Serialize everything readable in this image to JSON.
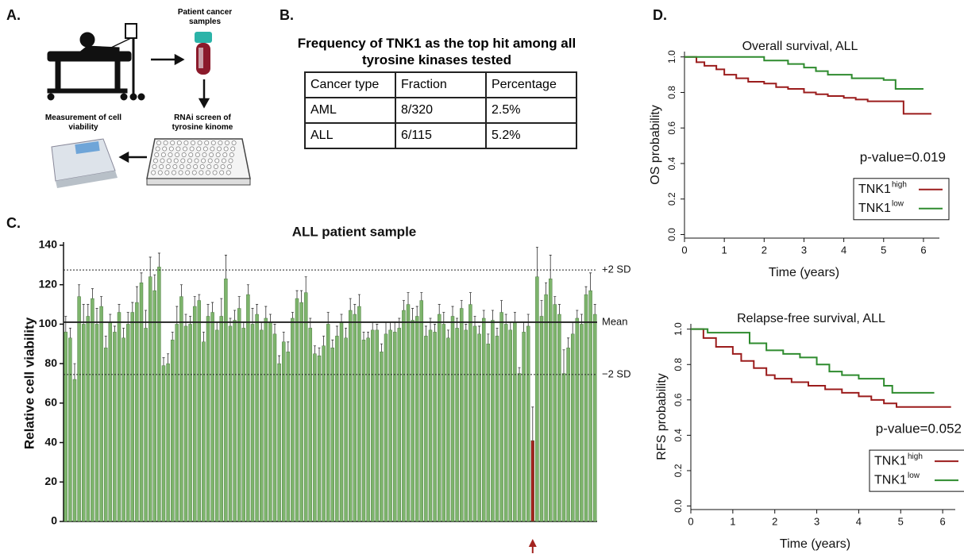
{
  "panel_labels": [
    "A.",
    "B.",
    "C.",
    "D."
  ],
  "diagram": {
    "patient_samples": "Patient cancer samples",
    "screen": "RNAi screen of tyrosine kinome",
    "measurement": "Measurement of cell viability"
  },
  "table": {
    "title": "Frequency of TNK1 as the top hit among all tyrosine kinases tested",
    "header": [
      "Cancer type",
      "Fraction",
      "Percentage"
    ],
    "rows": [
      [
        "AML",
        "8/320",
        "2.5%"
      ],
      [
        "ALL",
        "6/115",
        "5.2%"
      ]
    ]
  },
  "chart_data": [
    {
      "type": "bar",
      "title": "ALL patient sample",
      "y_label": "Relative cell viability",
      "values": [
        96,
        93,
        72,
        114,
        100,
        104,
        113,
        100,
        109,
        88,
        101,
        96,
        106,
        93,
        100,
        106,
        111,
        121,
        98,
        124,
        117,
        129,
        79,
        80,
        92,
        100,
        114,
        99,
        100,
        109,
        112,
        91,
        104,
        106,
        97,
        104,
        123,
        99,
        102,
        108,
        98,
        115,
        100,
        105,
        97,
        103,
        101,
        95,
        80,
        91,
        86,
        103,
        113,
        111,
        116,
        98,
        85,
        84,
        89,
        100,
        88,
        94,
        101,
        93,
        107,
        105,
        109,
        92,
        93,
        97,
        97,
        86,
        95,
        97,
        96,
        98,
        107,
        110,
        102,
        104,
        112,
        94,
        97,
        96,
        105,
        100,
        93,
        104,
        98,
        108,
        97,
        110,
        99,
        95,
        103,
        90,
        102,
        94,
        106,
        100,
        97,
        101,
        75,
        96,
        99,
        41,
        124,
        104,
        115,
        123,
        110,
        105,
        75,
        88,
        95,
        103,
        100,
        115,
        117,
        105
      ],
      "errors": [
        8,
        5,
        8,
        6,
        10,
        6,
        5,
        8,
        5,
        6,
        4,
        3,
        4,
        5,
        6,
        5,
        8,
        5,
        9,
        10,
        8,
        7,
        4,
        5,
        4,
        9,
        6,
        6,
        4,
        5,
        3,
        5,
        6,
        5,
        4,
        9,
        12,
        4,
        5,
        6,
        3,
        5,
        8,
        5,
        4,
        6,
        4,
        5,
        4,
        5,
        5,
        3,
        4,
        6,
        8,
        5,
        4,
        4,
        5,
        6,
        4,
        5,
        4,
        5,
        6,
        5,
        6,
        4,
        3,
        4,
        3,
        4,
        6,
        4,
        5,
        5,
        5,
        6,
        6,
        5,
        4,
        5,
        6,
        4,
        5,
        6,
        4,
        5,
        5,
        4,
        3,
        6,
        5,
        4,
        4,
        5,
        5,
        4,
        6,
        5,
        4,
        5,
        3,
        5,
        6,
        17,
        15,
        8,
        6,
        12,
        4,
        5,
        12,
        5,
        6,
        4,
        5,
        4,
        9,
        5
      ],
      "colors": [
        "#7db46c",
        "#7db46c",
        "#7db46c",
        "#7db46c",
        "#7db46c",
        "#7db46c",
        "#7db46c",
        "#7db46c",
        "#7db46c",
        "#7db46c",
        "#7db46c",
        "#7db46c",
        "#7db46c",
        "#7db46c",
        "#7db46c",
        "#7db46c",
        "#7db46c",
        "#7db46c",
        "#7db46c",
        "#7db46c",
        "#7db46c",
        "#7db46c",
        "#7db46c",
        "#7db46c",
        "#7db46c",
        "#7db46c",
        "#7db46c",
        "#7db46c",
        "#7db46c",
        "#7db46c",
        "#7db46c",
        "#7db46c",
        "#7db46c",
        "#7db46c",
        "#7db46c",
        "#7db46c",
        "#7db46c",
        "#7db46c",
        "#7db46c",
        "#7db46c",
        "#7db46c",
        "#7db46c",
        "#7db46c",
        "#7db46c",
        "#7db46c",
        "#7db46c",
        "#7db46c",
        "#7db46c",
        "#7db46c",
        "#7db46c",
        "#7db46c",
        "#7db46c",
        "#7db46c",
        "#7db46c",
        "#7db46c",
        "#7db46c",
        "#7db46c",
        "#7db46c",
        "#7db46c",
        "#7db46c",
        "#7db46c",
        "#7db46c",
        "#7db46c",
        "#7db46c",
        "#7db46c",
        "#7db46c",
        "#7db46c",
        "#7db46c",
        "#7db46c",
        "#7db46c",
        "#7db46c",
        "#7db46c",
        "#7db46c",
        "#7db46c",
        "#7db46c",
        "#7db46c",
        "#7db46c",
        "#7db46c",
        "#7db46c",
        "#7db46c",
        "#7db46c",
        "#7db46c",
        "#7db46c",
        "#7db46c",
        "#7db46c",
        "#7db46c",
        "#7db46c",
        "#7db46c",
        "#7db46c",
        "#7db46c",
        "#7db46c",
        "#7db46c",
        "#7db46c",
        "#7db46c",
        "#7db46c",
        "#7db46c",
        "#7db46c",
        "#7db46c",
        "#7db46c",
        "#7db46c",
        "#7db46c",
        "#7db46c",
        "#7db46c",
        "#7db46c",
        "#7db46c",
        "#a3231f",
        "#7db46c",
        "#7db46c",
        "#7db46c",
        "#7db46c",
        "#7db46c",
        "#7db46c",
        "#7db46c",
        "#7db46c",
        "#7db46c",
        "#7db46c",
        "#7db46c",
        "#7db46c",
        "#7db46c",
        "#7db46c"
      ],
      "ylim": [
        0,
        140
      ],
      "yticks": [
        0,
        20,
        40,
        60,
        80,
        100,
        120,
        140
      ],
      "reference_lines": [
        {
          "value": 127.5,
          "label": "+2 SD",
          "style": "dotted"
        },
        {
          "value": 101,
          "label": "Mean",
          "style": "solid"
        },
        {
          "value": 74.5,
          "label": "−2 SD",
          "style": "dotted"
        }
      ]
    },
    {
      "type": "step",
      "title": "Overall survival, ALL",
      "x_label": "Time (years)",
      "y_label": "OS probability",
      "annotation": "p-value=0.019",
      "series": [
        {
          "name": "TNK1",
          "superscript": "high",
          "color": "#9b1c1c",
          "x": [
            0,
            0.3,
            0.5,
            0.8,
            1.0,
            1.3,
            1.6,
            2.0,
            2.3,
            2.6,
            3.0,
            3.3,
            3.6,
            4.0,
            4.3,
            4.6,
            5.5,
            6.2
          ],
          "values": [
            1.0,
            0.97,
            0.95,
            0.93,
            0.9,
            0.88,
            0.86,
            0.85,
            0.83,
            0.82,
            0.8,
            0.79,
            0.78,
            0.77,
            0.76,
            0.75,
            0.68,
            0.68
          ]
        },
        {
          "name": "TNK1",
          "superscript": "low",
          "color": "#2e8b2e",
          "x": [
            0,
            2.0,
            2.6,
            3.0,
            3.3,
            3.6,
            4.2,
            5.0,
            5.3,
            6.0
          ],
          "values": [
            1.0,
            0.98,
            0.96,
            0.94,
            0.92,
            0.9,
            0.88,
            0.87,
            0.82,
            0.82
          ]
        }
      ],
      "xlim": [
        0,
        6.4
      ],
      "xticks": [
        0,
        1,
        2,
        3,
        4,
        5,
        6
      ],
      "ylim": [
        -0.02,
        1.03
      ],
      "yticks": [
        {
          "value": 0,
          "label": "0.0"
        },
        {
          "value": 0.2,
          "label": "0.2"
        },
        {
          "value": 0.4,
          "label": "0.4"
        },
        {
          "value": 0.6,
          "label": "0.6"
        },
        {
          "value": 0.8,
          "label": "0.8"
        },
        {
          "value": 1,
          "label": "1.0"
        }
      ]
    },
    {
      "type": "step",
      "title": "Relapse-free survival, ALL",
      "x_label": "Time (years)",
      "y_label": "RFS probability",
      "annotation": "p-value=0.052",
      "series": [
        {
          "name": "TNK1",
          "superscript": "high",
          "color": "#9b1c1c",
          "x": [
            0,
            0.3,
            0.6,
            1.0,
            1.2,
            1.5,
            1.8,
            2.0,
            2.4,
            2.8,
            3.2,
            3.6,
            4.0,
            4.3,
            4.6,
            4.9,
            6.2
          ],
          "values": [
            1.0,
            0.95,
            0.9,
            0.86,
            0.82,
            0.78,
            0.74,
            0.72,
            0.7,
            0.68,
            0.66,
            0.64,
            0.62,
            0.6,
            0.58,
            0.56,
            0.56
          ]
        },
        {
          "name": "TNK1",
          "superscript": "low",
          "color": "#2e8b2e",
          "x": [
            0,
            0.4,
            1.4,
            1.8,
            2.2,
            2.6,
            3.0,
            3.3,
            3.6,
            4.0,
            4.6,
            4.8,
            5.8
          ],
          "values": [
            1.0,
            0.98,
            0.92,
            0.88,
            0.86,
            0.84,
            0.8,
            0.76,
            0.74,
            0.72,
            0.68,
            0.64,
            0.64
          ]
        }
      ],
      "xlim": [
        0,
        6.3
      ],
      "xticks": [
        0,
        1,
        2,
        3,
        4,
        5,
        6
      ],
      "ylim": [
        -0.02,
        1.03
      ],
      "yticks": [
        {
          "value": 0,
          "label": "0.0"
        },
        {
          "value": 0.2,
          "label": "0.2"
        },
        {
          "value": 0.4,
          "label": "0.4"
        },
        {
          "value": 0.6,
          "label": "0.6"
        },
        {
          "value": 0.8,
          "label": "0.8"
        },
        {
          "value": 1,
          "label": "1.0"
        }
      ]
    }
  ]
}
